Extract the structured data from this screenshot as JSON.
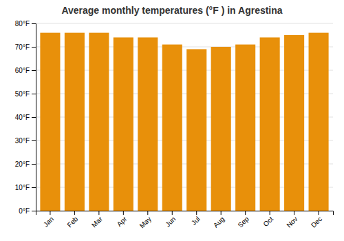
{
  "chart_data": {
    "type": "bar",
    "title": "Average monthly temperatures (°F ) in Agrestina",
    "categories": [
      "Jan",
      "Feb",
      "Mar",
      "Apr",
      "May",
      "Jun",
      "Jul",
      "Aug",
      "Sep",
      "Oct",
      "Nov",
      "Dec"
    ],
    "values": [
      76,
      76,
      76,
      74,
      74,
      71,
      69,
      70,
      71,
      74,
      75,
      76
    ],
    "color": "#E8900A",
    "ylim": [
      0,
      80
    ],
    "yticks": [
      {
        "value": 0,
        "label": "0°F"
      },
      {
        "value": 10,
        "label": "10°F"
      },
      {
        "value": 20,
        "label": "20°F"
      },
      {
        "value": 30,
        "label": "30°F"
      },
      {
        "value": 40,
        "label": "40°F"
      },
      {
        "value": 50,
        "label": "50°F"
      },
      {
        "value": 60,
        "label": "60°F"
      },
      {
        "value": 70,
        "label": "70°F"
      },
      {
        "value": 80,
        "label": "80°F"
      }
    ],
    "grid": true
  }
}
